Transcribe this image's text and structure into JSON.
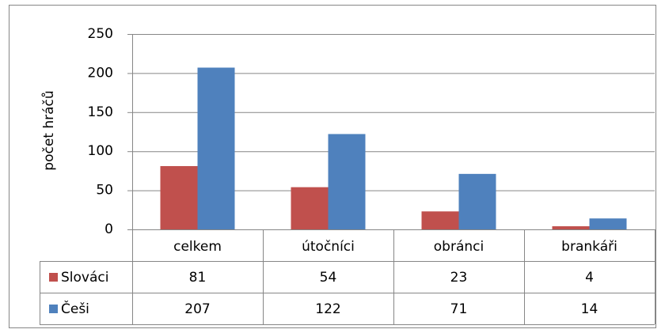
{
  "chart_data": {
    "type": "bar",
    "y_label": "počet hráčů",
    "categories": [
      "celkem",
      "útočníci",
      "obránci",
      "brankáři"
    ],
    "series": [
      {
        "name": "Slováci",
        "color": "#c0504d",
        "values": [
          81,
          54,
          23,
          4
        ]
      },
      {
        "name": "Češi",
        "color": "#4f81bd",
        "values": [
          207,
          122,
          71,
          14
        ]
      }
    ],
    "ylim": [
      0,
      250
    ],
    "yticks": [
      0,
      50,
      100,
      150,
      200,
      250
    ],
    "grid": true
  }
}
